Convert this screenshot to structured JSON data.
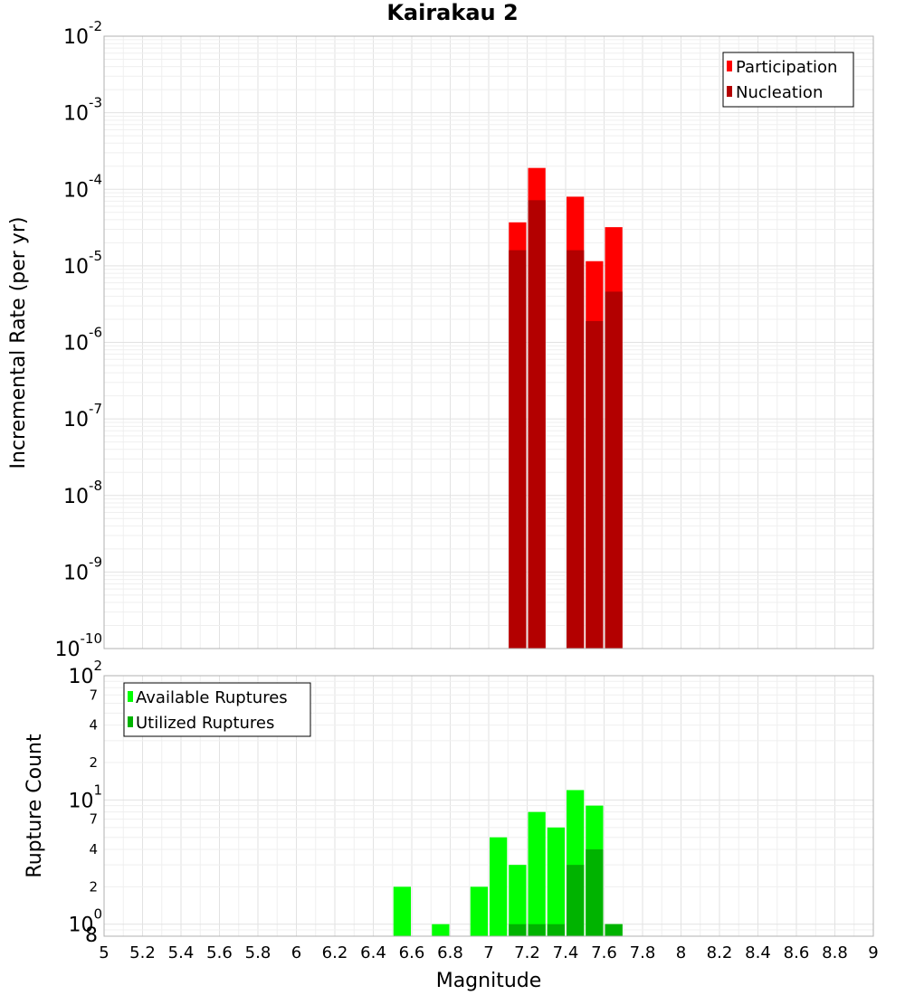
{
  "colors": {
    "participation": "#ff0000",
    "nucleation": "#b30000",
    "available": "#00ff00",
    "utilized": "#00b300"
  },
  "chart_data": [
    {
      "type": "bar",
      "title": "Kairakau 2",
      "xlabel": "Magnitude",
      "ylabel": "Incremental Rate (per yr)",
      "yscale": "log",
      "xlim": [
        5,
        9
      ],
      "ylim": [
        1e-10,
        0.01
      ],
      "bin_width": 0.1,
      "ytick_labels": [
        {
          "base": "10",
          "exp": "-10",
          "value": 1e-10
        },
        {
          "base": "10",
          "exp": "-9",
          "value": 1e-09
        },
        {
          "base": "10",
          "exp": "-8",
          "value": 1e-08
        },
        {
          "base": "10",
          "exp": "-7",
          "value": 1e-07
        },
        {
          "base": "10",
          "exp": "-6",
          "value": 1e-06
        },
        {
          "base": "10",
          "exp": "-5",
          "value": 1e-05
        },
        {
          "base": "10",
          "exp": "-4",
          "value": 0.0001
        },
        {
          "base": "10",
          "exp": "-3",
          "value": 0.001
        },
        {
          "base": "10",
          "exp": "-2",
          "value": 0.01
        }
      ],
      "legend": {
        "placement": "top-right",
        "entries": [
          {
            "key": "participation",
            "label": "Participation"
          },
          {
            "key": "nucleation",
            "label": "Nucleation"
          }
        ]
      },
      "series": [
        {
          "name": "Participation",
          "key": "participation",
          "x": [
            7.15,
            7.25,
            7.45,
            7.55,
            7.65
          ],
          "values": [
            3.7e-05,
            0.00019,
            8e-05,
            1.15e-05,
            3.2e-05
          ]
        },
        {
          "name": "Nucleation",
          "key": "nucleation",
          "x": [
            7.15,
            7.25,
            7.45,
            7.55,
            7.65
          ],
          "values": [
            1.6e-05,
            7.2e-05,
            1.6e-05,
            1.9e-06,
            4.6e-06
          ]
        }
      ]
    },
    {
      "type": "bar",
      "title": "",
      "xlabel": "Magnitude",
      "ylabel": "Rupture Count",
      "yscale": "log",
      "xlim": [
        5,
        9
      ],
      "ylim": [
        0.8,
        100
      ],
      "bin_width": 0.1,
      "ytick_labels": [
        {
          "base": "10",
          "exp": "0",
          "value": 1
        },
        {
          "base": "10",
          "exp": "1",
          "value": 10
        },
        {
          "base": "10",
          "exp": "2",
          "value": 100
        }
      ],
      "minor_tick_labels": [
        {
          "label": "2",
          "value": 2
        },
        {
          "label": "4",
          "value": 4
        },
        {
          "label": "7",
          "value": 7
        },
        {
          "label": "2",
          "value": 20
        },
        {
          "label": "4",
          "value": 40
        },
        {
          "label": "7",
          "value": 70
        }
      ],
      "bottom_label": {
        "label": "8",
        "value": 0.8
      },
      "xtick_labels": [
        "5",
        "5.2",
        "5.4",
        "5.6",
        "5.8",
        "6",
        "6.2",
        "6.4",
        "6.6",
        "6.8",
        "7",
        "7.2",
        "7.4",
        "7.6",
        "7.8",
        "8",
        "8.2",
        "8.4",
        "8.6",
        "8.8",
        "9"
      ],
      "legend": {
        "placement": "top-left",
        "entries": [
          {
            "key": "available",
            "label": "Available Ruptures"
          },
          {
            "key": "utilized",
            "label": "Utilized Ruptures"
          }
        ]
      },
      "series": [
        {
          "name": "Available Ruptures",
          "key": "available",
          "x": [
            6.55,
            6.75,
            6.95,
            7.05,
            7.15,
            7.25,
            7.35,
            7.45,
            7.55,
            7.65
          ],
          "values": [
            2,
            1,
            2,
            5,
            3,
            8,
            6,
            12,
            9,
            1
          ]
        },
        {
          "name": "Utilized Ruptures",
          "key": "utilized",
          "x": [
            7.15,
            7.25,
            7.35,
            7.45,
            7.55,
            7.65
          ],
          "values": [
            1,
            1,
            1,
            3,
            4,
            1
          ]
        }
      ]
    }
  ]
}
